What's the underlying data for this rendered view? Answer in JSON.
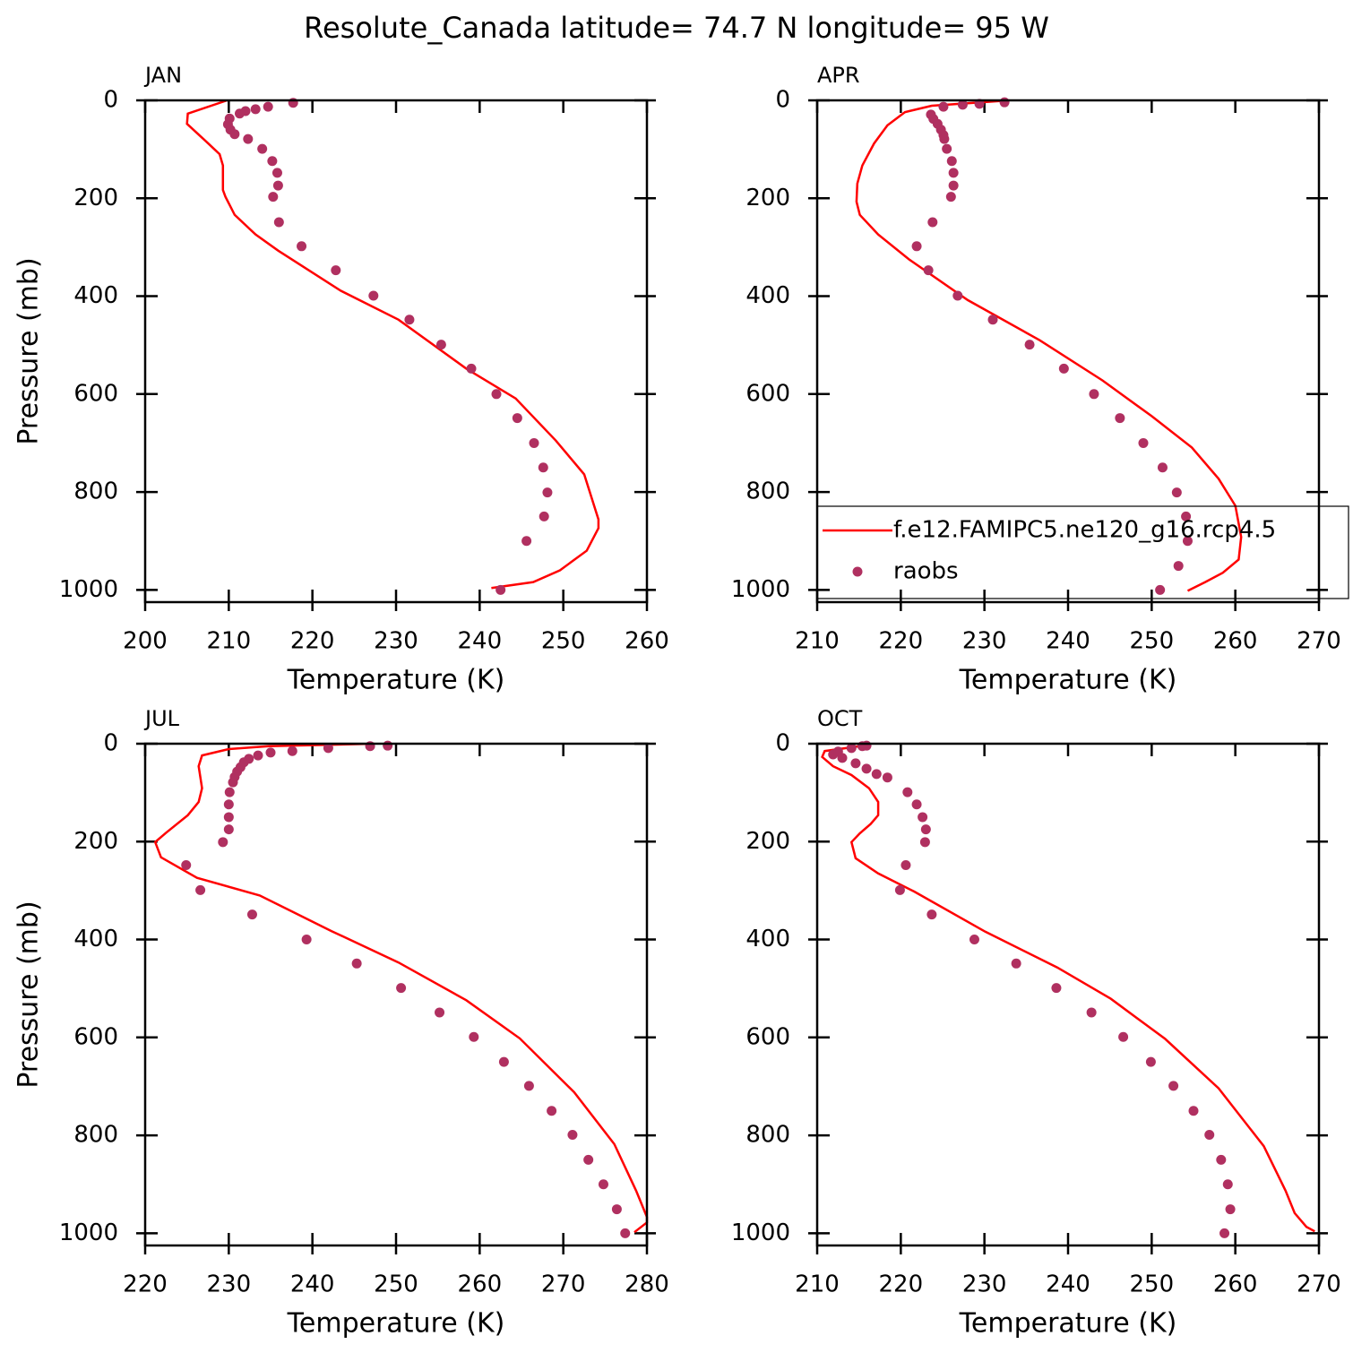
{
  "title": "Resolute_Canada  latitude= 74.7 N longitude= 95 W",
  "chart_data": [
    {
      "type": "line",
      "title": "JAN",
      "xlabel": "Temperature (K)",
      "ylabel": "Pressure (mb)",
      "xlim": [
        200,
        260
      ],
      "xticks": [
        200,
        210,
        220,
        230,
        240,
        250,
        260
      ],
      "ylim": [
        1025,
        0
      ],
      "yticks": [
        0,
        200,
        400,
        600,
        800,
        1000
      ],
      "series": [
        {
          "type": "line",
          "color": "#ff0000",
          "x": [
            209.8,
            205.1,
            205.0,
            207.3,
            208.9,
            209.3,
            209.3,
            209.6,
            210.7,
            213.2,
            215.9,
            223.4,
            230.3,
            238.4,
            244.3,
            249.1,
            252.5,
            254.2,
            254.2,
            252.8,
            249.6,
            246.4,
            241.4
          ],
          "y": [
            0,
            27,
            48,
            84,
            110,
            133,
            183,
            197,
            234,
            274,
            307,
            389,
            448,
            548,
            609,
            695,
            764,
            856,
            874,
            920,
            960,
            984,
            996
          ]
        },
        {
          "type": "scatter",
          "color": "#b03060",
          "x": [
            217.7,
            214.7,
            213.2,
            212.0,
            211.3,
            210.1,
            209.9,
            210.2,
            210.7,
            212.3,
            214.0,
            215.2,
            215.8,
            215.9,
            215.3,
            216.0,
            218.7,
            222.8,
            227.3,
            231.6,
            235.4,
            239.0,
            242.0,
            244.5,
            246.5,
            247.6,
            248.1,
            247.7,
            245.6,
            242.5
          ],
          "y": [
            5,
            13,
            18,
            22,
            27,
            37,
            49,
            60,
            69,
            79,
            99,
            124,
            148,
            174,
            197,
            249,
            298,
            347,
            399,
            448,
            499,
            548,
            600,
            649,
            700,
            750,
            801,
            850,
            900,
            1000
          ]
        }
      ]
    },
    {
      "type": "line",
      "title": "APR",
      "xlabel": "Temperature (K)",
      "xlim": [
        210,
        270
      ],
      "xticks": [
        210,
        220,
        230,
        240,
        250,
        260,
        270
      ],
      "ylim": [
        1025,
        0
      ],
      "yticks": [
        0,
        200,
        400,
        600,
        800,
        1000
      ],
      "legend": "lower right",
      "series": [
        {
          "type": "line",
          "name": "f.e12.FAMIPC5.ne120_g16.rcp4.5",
          "color": "#ff0000",
          "x": [
            233.0,
            223.7,
            220.5,
            218.4,
            216.8,
            215.4,
            214.8,
            214.7,
            215.1,
            217.3,
            221.0,
            228.0,
            236.6,
            244.1,
            250.0,
            254.8,
            258.0,
            260.0,
            260.7,
            260.4,
            258.5,
            256.4,
            254.3
          ],
          "y": [
            0,
            11,
            24,
            51,
            88,
            133,
            170,
            207,
            234,
            274,
            325,
            408,
            490,
            572,
            645,
            709,
            773,
            828,
            892,
            938,
            965,
            984,
            1002
          ]
        },
        {
          "type": "scatter",
          "name": "raobs",
          "color": "#b03060",
          "x": [
            232.4,
            229.4,
            227.4,
            225.1,
            223.6,
            223.9,
            224.4,
            224.8,
            225.1,
            225.2,
            225.5,
            226.1,
            226.3,
            226.3,
            226.0,
            223.8,
            221.9,
            223.3,
            226.8,
            231.0,
            235.4,
            239.5,
            243.1,
            246.2,
            249.0,
            251.3,
            253.0,
            254.1,
            254.3,
            253.2,
            251.0
          ],
          "y": [
            4,
            7,
            9,
            13,
            29,
            38,
            48,
            60,
            71,
            79,
            99,
            124,
            148,
            174,
            197,
            249,
            298,
            347,
            399,
            448,
            499,
            548,
            600,
            649,
            700,
            750,
            801,
            850,
            900,
            951,
            1000
          ]
        }
      ]
    },
    {
      "type": "line",
      "title": "JUL",
      "xlabel": "Temperature (K)",
      "ylabel": "Pressure (mb)",
      "xlim": [
        220,
        280
      ],
      "xticks": [
        220,
        230,
        240,
        250,
        260,
        270,
        280
      ],
      "ylim": [
        1025,
        0
      ],
      "yticks": [
        0,
        200,
        400,
        600,
        800,
        1000
      ],
      "series": [
        {
          "type": "line",
          "color": "#ff0000",
          "x": [
            247.4,
            234.8,
            230.0,
            226.8,
            226.4,
            226.8,
            226.4,
            225.1,
            222.5,
            221.2,
            221.9,
            226.2,
            233.7,
            242.3,
            250.3,
            258.4,
            264.8,
            271.3,
            276.1,
            278.7,
            280.0,
            280.0,
            278.5
          ],
          "y": [
            0,
            5,
            11,
            24,
            46,
            91,
            119,
            146,
            182,
            201,
            232,
            274,
            310,
            383,
            447,
            524,
            602,
            712,
            818,
            913,
            967,
            978,
            998
          ]
        },
        {
          "type": "scatter",
          "color": "#b03060",
          "x": [
            249.0,
            246.9,
            241.9,
            237.6,
            235.0,
            233.5,
            232.4,
            231.8,
            231.4,
            231.0,
            230.7,
            230.5,
            230.1,
            230.0,
            230.0,
            230.0,
            229.3,
            224.9,
            226.6,
            232.8,
            239.3,
            245.3,
            250.6,
            255.2,
            259.3,
            262.9,
            265.9,
            268.6,
            271.1,
            273.0,
            274.8,
            276.4,
            277.4
          ],
          "y": [
            4,
            5,
            9,
            15,
            18,
            24,
            31,
            38,
            48,
            57,
            68,
            79,
            99,
            124,
            150,
            175,
            201,
            248,
            299,
            349,
            400,
            449,
            499,
            549,
            599,
            650,
            699,
            750,
            799,
            850,
            900,
            951,
            1000
          ]
        }
      ]
    },
    {
      "type": "line",
      "title": "OCT",
      "xlabel": "Temperature (K)",
      "xlim": [
        210,
        270
      ],
      "xticks": [
        210,
        220,
        230,
        240,
        250,
        260,
        270
      ],
      "ylim": [
        1025,
        0
      ],
      "yticks": [
        0,
        200,
        400,
        600,
        800,
        1000
      ],
      "series": [
        {
          "type": "line",
          "color": "#ff0000",
          "x": [
            215.1,
            210.9,
            210.6,
            211.9,
            214.1,
            216.2,
            217.3,
            217.3,
            216.4,
            215.1,
            214.1,
            214.6,
            217.3,
            221.6,
            230.1,
            238.7,
            245.1,
            251.6,
            258.0,
            263.4,
            266.0,
            267.1,
            268.5,
            269.5
          ],
          "y": [
            5,
            15,
            27,
            46,
            64,
            91,
            119,
            146,
            164,
            183,
            201,
            234,
            265,
            302,
            384,
            457,
            521,
            603,
            704,
            822,
            913,
            959,
            987,
            996
          ]
        },
        {
          "type": "scatter",
          "color": "#b03060",
          "x": [
            215.9,
            215.4,
            214.1,
            212.5,
            211.9,
            213.0,
            214.6,
            215.9,
            217.1,
            218.4,
            220.8,
            221.9,
            222.6,
            223.0,
            222.9,
            220.6,
            219.9,
            223.7,
            228.8,
            233.8,
            238.6,
            242.8,
            246.6,
            249.9,
            252.6,
            255.0,
            256.9,
            258.3,
            259.1,
            259.4,
            258.7
          ],
          "y": [
            4,
            5,
            9,
            16,
            22,
            29,
            40,
            51,
            62,
            69,
            99,
            124,
            150,
            175,
            201,
            248,
            299,
            349,
            400,
            449,
            499,
            549,
            599,
            650,
            699,
            750,
            799,
            850,
            900,
            951,
            1000
          ]
        }
      ]
    }
  ]
}
